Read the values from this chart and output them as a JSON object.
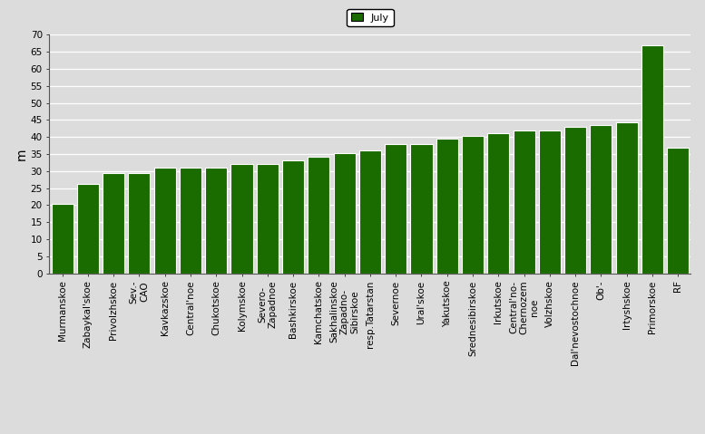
{
  "categories": [
    "Murmanskoe",
    "Zabaykal'skoe",
    "Privolzhskoe",
    "Sev.-\nCAO",
    "Kavkazskoe",
    "Central'noe",
    "Chukotskoe",
    "Kolymskoe",
    "Severo-\nZapadnoe",
    "Bashkirskoe",
    "Kamchatskoe",
    "Sakhalinskoe\nZapadno-\nSibirskoe",
    "resp.Tatarstan",
    "Severnoe",
    "Ural'skoe",
    "Yakutskoe",
    "Srednesibirskoe",
    "Irkutskoe",
    "Central'no-\nChernozem\nnoe",
    "Volzhskoe",
    "Dal'nevostochnoe",
    "Ob'-",
    "Irtyshskoe",
    "Primorskoe",
    "RF"
  ],
  "values": [
    20.3,
    26.2,
    29.4,
    29.4,
    31.1,
    31.1,
    31.1,
    32.0,
    32.0,
    33.1,
    34.1,
    35.3,
    36.0,
    38.0,
    38.0,
    39.4,
    40.4,
    41.2,
    42.0,
    42.0,
    43.1,
    43.5,
    44.2,
    67.0,
    37.0
  ],
  "bar_color": "#1a6b00",
  "background_color": "#dcdcdc",
  "plot_bg_color": "#dcdcdc",
  "ylabel": "m",
  "ylim": [
    0,
    70
  ],
  "yticks": [
    0,
    5,
    10,
    15,
    20,
    25,
    30,
    35,
    40,
    45,
    50,
    55,
    60,
    65,
    70
  ],
  "legend_label": "July",
  "legend_color": "#1a6b00",
  "tick_fontsize": 7.5,
  "label_fontsize": 8
}
